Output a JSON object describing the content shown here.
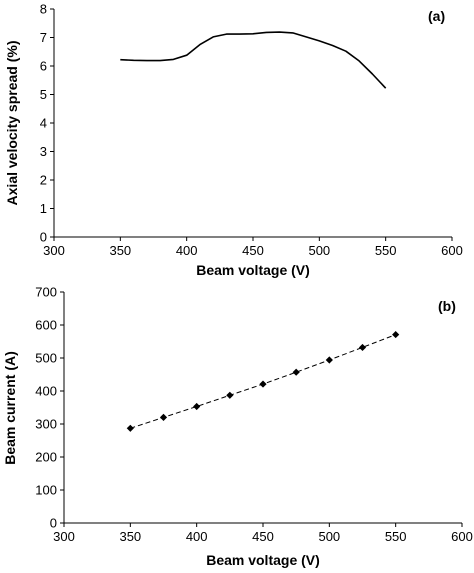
{
  "chart_data": [
    {
      "type": "line",
      "panel_label": "(a)",
      "xlabel": "Beam voltage (V)",
      "ylabel": "Axial velocity spread (%)",
      "xlim": [
        300,
        600
      ],
      "ylim": [
        0,
        8
      ],
      "xticks": [
        "300",
        "350",
        "400",
        "450",
        "500",
        "550",
        "600"
      ],
      "yticks": [
        "0",
        "1",
        "2",
        "3",
        "4",
        "5",
        "6",
        "7",
        "8"
      ],
      "grid": false,
      "series": [
        {
          "x": [
            350,
            360,
            370,
            380,
            390,
            400,
            410,
            420,
            430,
            440,
            450,
            460,
            470,
            480,
            490,
            500,
            510,
            520,
            530,
            540,
            550
          ],
          "y": [
            6.22,
            6.2,
            6.19,
            6.19,
            6.23,
            6.38,
            6.75,
            7.02,
            7.12,
            7.12,
            7.13,
            7.18,
            7.19,
            7.16,
            7.02,
            6.88,
            6.72,
            6.52,
            6.18,
            5.72,
            5.22
          ],
          "line_style": "solid",
          "marker": "none",
          "color": "#000000"
        }
      ]
    },
    {
      "type": "line",
      "panel_label": "(b)",
      "xlabel": "Beam voltage (V)",
      "ylabel": "Beam current (A)",
      "xlim": [
        300,
        600
      ],
      "ylim": [
        0,
        700
      ],
      "xticks": [
        "300",
        "350",
        "400",
        "450",
        "500",
        "550",
        "600"
      ],
      "yticks": [
        "0",
        "100",
        "200",
        "300",
        "400",
        "500",
        "600",
        "700"
      ],
      "grid": false,
      "series": [
        {
          "x": [
            350,
            375,
            400,
            425,
            450,
            475,
            500,
            525,
            550
          ],
          "y": [
            287,
            320,
            353,
            387,
            421,
            457,
            494,
            532,
            571
          ],
          "line_style": "dashed",
          "marker": "diamond",
          "color": "#000000"
        }
      ]
    }
  ]
}
